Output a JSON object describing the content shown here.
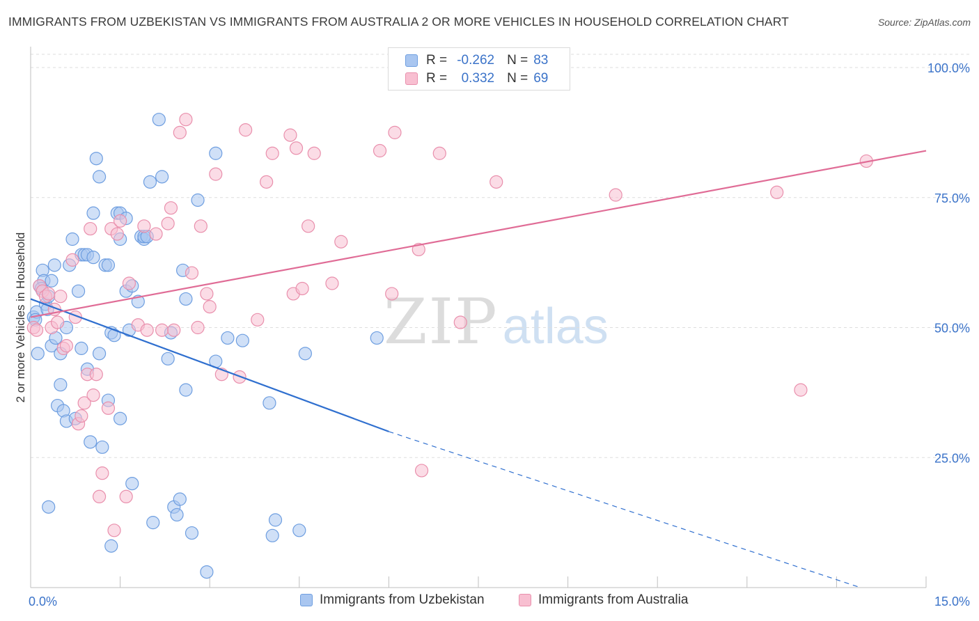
{
  "title": "IMMIGRANTS FROM UZBEKISTAN VS IMMIGRANTS FROM AUSTRALIA 2 OR MORE VEHICLES IN HOUSEHOLD CORRELATION CHART",
  "source": "Source: ZipAtlas.com",
  "watermark": {
    "zip": "ZIP",
    "atlas": "atlas"
  },
  "legend": {
    "rows": [
      {
        "r_label": "R =",
        "r_value": "-0.262",
        "n_label": "N =",
        "n_value": "83",
        "color": "#a9c6f0",
        "border": "#6e9ee0"
      },
      {
        "r_label": "R =",
        "r_value": "0.332",
        "n_label": "N =",
        "n_value": "69",
        "color": "#f8bfd1",
        "border": "#e98fac"
      }
    ]
  },
  "bottom_legend": [
    "Immigrants from Uzbekistan",
    "Immigrants from Australia"
  ],
  "chart_data": {
    "type": "scatter",
    "title": "IMMIGRANTS FROM UZBEKISTAN VS IMMIGRANTS FROM AUSTRALIA 2 OR MORE VEHICLES IN HOUSEHOLD CORRELATION CHART",
    "xlabel": "",
    "ylabel": "2 or more Vehicles in Household",
    "xlim": [
      0,
      15
    ],
    "ylim": [
      0,
      100
    ],
    "x_tick_labels": [
      "0.0%",
      "15.0%"
    ],
    "y_ticks": [
      25,
      50,
      75,
      100
    ],
    "y_tick_labels": [
      "25.0%",
      "50.0%",
      "75.0%",
      "100.0%"
    ],
    "grid": true,
    "series": [
      {
        "name": "Immigrants from Uzbekistan",
        "color": "#a9c6f0",
        "stroke": "#6e9ee0",
        "line_color": "#2f6fcf",
        "points": [
          [
            0.05,
            52.0
          ],
          [
            0.1,
            53.0
          ],
          [
            0.12,
            45.0
          ],
          [
            0.15,
            58.0
          ],
          [
            0.2,
            61.0
          ],
          [
            0.22,
            59.0
          ],
          [
            0.25,
            54.5
          ],
          [
            0.3,
            15.5
          ],
          [
            0.3,
            56.0
          ],
          [
            0.35,
            59.0
          ],
          [
            0.35,
            46.5
          ],
          [
            0.4,
            62.0
          ],
          [
            0.45,
            35.0
          ],
          [
            0.5,
            39.0
          ],
          [
            0.5,
            45.0
          ],
          [
            0.55,
            34.0
          ],
          [
            0.6,
            32.0
          ],
          [
            0.6,
            50.0
          ],
          [
            0.65,
            62.0
          ],
          [
            0.7,
            67.0
          ],
          [
            0.75,
            32.5
          ],
          [
            0.8,
            57.0
          ],
          [
            0.85,
            46.0
          ],
          [
            0.85,
            64.0
          ],
          [
            0.9,
            64.0
          ],
          [
            0.95,
            64.0
          ],
          [
            0.95,
            42.0
          ],
          [
            1.0,
            28.0
          ],
          [
            1.05,
            63.5
          ],
          [
            1.05,
            72.0
          ],
          [
            1.1,
            82.5
          ],
          [
            1.15,
            45.0
          ],
          [
            1.15,
            79.0
          ],
          [
            1.2,
            27.0
          ],
          [
            1.25,
            62.0
          ],
          [
            1.3,
            36.0
          ],
          [
            1.3,
            62.0
          ],
          [
            1.35,
            49.0
          ],
          [
            1.35,
            8.0
          ],
          [
            1.4,
            48.5
          ],
          [
            1.45,
            72.0
          ],
          [
            1.5,
            72.0
          ],
          [
            1.5,
            67.0
          ],
          [
            1.5,
            32.5
          ],
          [
            1.6,
            71.0
          ],
          [
            1.6,
            57.0
          ],
          [
            1.65,
            49.5
          ],
          [
            1.7,
            20.0
          ],
          [
            1.7,
            58.0
          ],
          [
            1.8,
            55.0
          ],
          [
            1.85,
            67.5
          ],
          [
            1.9,
            67.0
          ],
          [
            1.9,
            67.5
          ],
          [
            1.95,
            67.5
          ],
          [
            2.0,
            78.0
          ],
          [
            2.05,
            12.5
          ],
          [
            2.15,
            90.0
          ],
          [
            2.2,
            79.0
          ],
          [
            2.3,
            44.0
          ],
          [
            2.35,
            49.0
          ],
          [
            2.4,
            15.5
          ],
          [
            2.45,
            14.0
          ],
          [
            2.5,
            17.0
          ],
          [
            2.55,
            61.0
          ],
          [
            2.6,
            55.5
          ],
          [
            2.6,
            38.0
          ],
          [
            2.7,
            10.5
          ],
          [
            2.8,
            74.5
          ],
          [
            2.95,
            3.0
          ],
          [
            3.1,
            83.5
          ],
          [
            3.1,
            43.5
          ],
          [
            3.3,
            48.0
          ],
          [
            3.55,
            47.5
          ],
          [
            4.0,
            35.5
          ],
          [
            4.05,
            10.0
          ],
          [
            4.1,
            13.0
          ],
          [
            4.5,
            11.0
          ],
          [
            4.6,
            45.0
          ],
          [
            5.8,
            48.0
          ],
          [
            0.08,
            51.5
          ],
          [
            0.18,
            57.5
          ],
          [
            0.28,
            53.5
          ],
          [
            0.42,
            48.0
          ]
        ]
      },
      {
        "name": "Immigrants from Australia",
        "color": "#f8bfd1",
        "stroke": "#e98fac",
        "line_color": "#e06c96",
        "points": [
          [
            0.05,
            50.0
          ],
          [
            0.1,
            49.5
          ],
          [
            0.15,
            58.0
          ],
          [
            0.2,
            57.0
          ],
          [
            0.25,
            56.0
          ],
          [
            0.3,
            56.5
          ],
          [
            0.35,
            50.0
          ],
          [
            0.4,
            53.5
          ],
          [
            0.45,
            51.0
          ],
          [
            0.5,
            56.0
          ],
          [
            0.55,
            46.0
          ],
          [
            0.6,
            46.5
          ],
          [
            0.7,
            63.0
          ],
          [
            0.75,
            52.0
          ],
          [
            0.8,
            31.5
          ],
          [
            0.85,
            33.0
          ],
          [
            0.9,
            35.5
          ],
          [
            0.95,
            41.0
          ],
          [
            1.0,
            69.0
          ],
          [
            1.05,
            37.0
          ],
          [
            1.1,
            41.0
          ],
          [
            1.15,
            17.5
          ],
          [
            1.2,
            22.0
          ],
          [
            1.3,
            34.5
          ],
          [
            1.35,
            69.0
          ],
          [
            1.4,
            11.0
          ],
          [
            1.45,
            68.0
          ],
          [
            1.5,
            70.5
          ],
          [
            1.6,
            17.5
          ],
          [
            1.65,
            58.5
          ],
          [
            1.8,
            50.5
          ],
          [
            1.9,
            69.5
          ],
          [
            1.95,
            49.5
          ],
          [
            2.1,
            68.0
          ],
          [
            2.2,
            49.5
          ],
          [
            2.3,
            70.0
          ],
          [
            2.35,
            73.0
          ],
          [
            2.4,
            49.5
          ],
          [
            2.5,
            87.5
          ],
          [
            2.6,
            90.0
          ],
          [
            2.7,
            60.5
          ],
          [
            2.8,
            50.0
          ],
          [
            2.85,
            69.5
          ],
          [
            2.95,
            56.5
          ],
          [
            3.0,
            54.0
          ],
          [
            3.1,
            79.5
          ],
          [
            3.2,
            41.0
          ],
          [
            3.5,
            40.5
          ],
          [
            3.6,
            88.0
          ],
          [
            3.8,
            51.5
          ],
          [
            3.95,
            78.0
          ],
          [
            4.05,
            83.5
          ],
          [
            4.35,
            87.0
          ],
          [
            4.4,
            56.5
          ],
          [
            4.45,
            84.5
          ],
          [
            4.55,
            57.5
          ],
          [
            4.65,
            69.5
          ],
          [
            4.75,
            83.5
          ],
          [
            5.05,
            58.5
          ],
          [
            5.2,
            66.5
          ],
          [
            5.85,
            84.0
          ],
          [
            6.05,
            56.5
          ],
          [
            6.1,
            87.5
          ],
          [
            6.5,
            65.0
          ],
          [
            6.55,
            22.5
          ],
          [
            6.85,
            83.5
          ],
          [
            7.2,
            51.0
          ],
          [
            7.8,
            78.0
          ],
          [
            9.8,
            75.5
          ],
          [
            12.5,
            76.0
          ],
          [
            12.9,
            38.0
          ],
          [
            14.0,
            82.0
          ]
        ]
      }
    ],
    "trend_lines": [
      {
        "series": "Immigrants from Uzbekistan",
        "x_start": 0.0,
        "y_start": 55.5,
        "x_solid_end": 6.0,
        "y_solid_end": 30.0,
        "x_dash_end": 13.9,
        "y_dash_end": 0.0
      },
      {
        "series": "Immigrants from Australia",
        "x_start": 0.0,
        "y_start": 52.0,
        "x_end": 15.0,
        "y_end": 84.0
      }
    ]
  }
}
